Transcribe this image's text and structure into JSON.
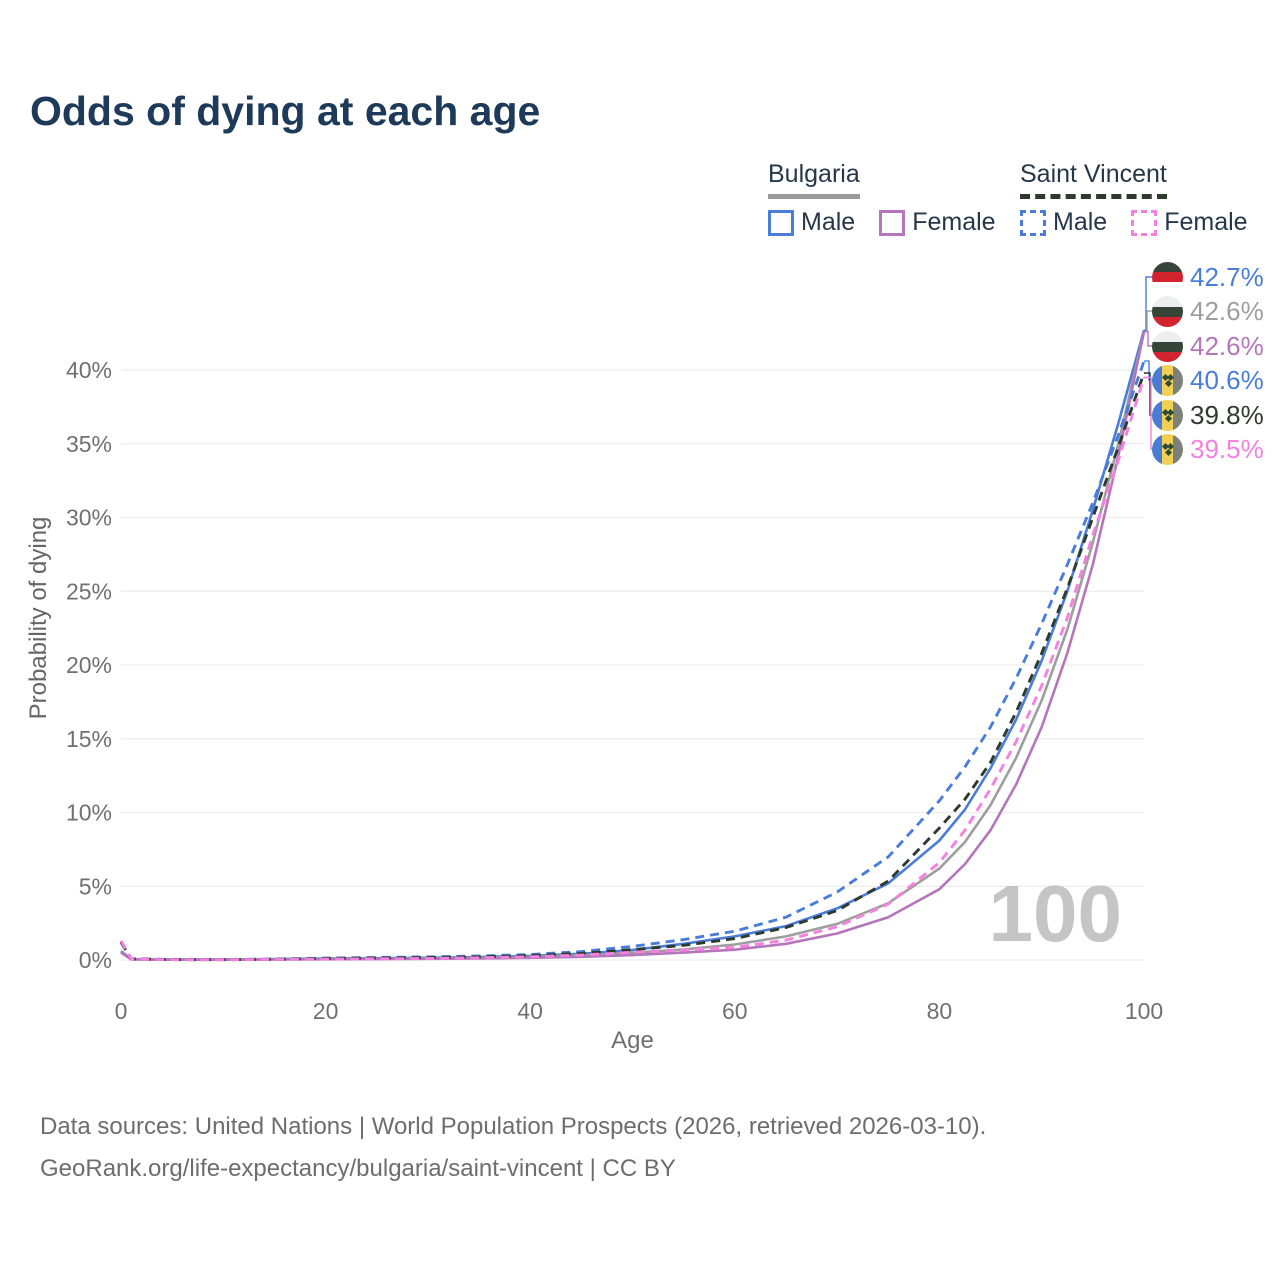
{
  "header": {
    "title": "Odds of dying at each age"
  },
  "legend": {
    "groups": [
      {
        "name": "Bulgaria",
        "line_style": "solid",
        "underline_color": "#9a9a9a",
        "items": [
          {
            "label": "Male",
            "color": "#4a7dd9"
          },
          {
            "label": "Female",
            "color": "#b475bb"
          }
        ]
      },
      {
        "name": "Saint Vincent",
        "line_style": "dashed",
        "underline_color": "#2e3a2b",
        "items": [
          {
            "label": "Male",
            "color": "#4a7dd9"
          },
          {
            "label": "Female",
            "color": "#f580e0"
          }
        ]
      }
    ]
  },
  "end_labels": [
    {
      "flag": "bulgaria",
      "value": "42.7%",
      "color": "#4a7dd9"
    },
    {
      "flag": "bulgaria",
      "value": "42.6%",
      "color": "#9e9e9e"
    },
    {
      "flag": "bulgaria",
      "value": "42.6%",
      "color": "#b475bb"
    },
    {
      "flag": "saint-vincent",
      "value": "40.6%",
      "color": "#4a7dd9"
    },
    {
      "flag": "saint-vincent",
      "value": "39.8%",
      "color": "#2e3a2b"
    },
    {
      "flag": "saint-vincent",
      "value": "39.5%",
      "color": "#f580e0"
    }
  ],
  "chart_data": {
    "type": "line",
    "title": "Odds of dying at each age",
    "xlabel": "Age",
    "ylabel": "Probability of dying",
    "xlim": [
      0,
      100
    ],
    "ylim_pct": [
      0,
      44
    ],
    "xticks": [
      0,
      20,
      40,
      60,
      80,
      100
    ],
    "yticks_pct": [
      0,
      5,
      10,
      15,
      20,
      25,
      30,
      35,
      40
    ],
    "grid": true,
    "hover_age": "100",
    "legend_position": "top-right",
    "x": [
      0,
      1,
      5,
      10,
      15,
      20,
      25,
      30,
      35,
      40,
      45,
      50,
      55,
      60,
      65,
      70,
      75,
      80,
      82.5,
      85,
      87.5,
      90,
      92.5,
      95,
      97.5,
      100
    ],
    "series": [
      {
        "name": "Bulgaria Male",
        "style": "solid",
        "color": "#4a7dd9",
        "end_label": "42.7%",
        "values_pct": [
          0.6,
          0.06,
          0.03,
          0.03,
          0.06,
          0.1,
          0.12,
          0.15,
          0.2,
          0.28,
          0.42,
          0.68,
          1.1,
          1.6,
          2.3,
          3.5,
          5.2,
          8.1,
          10.2,
          13.0,
          16.3,
          20.3,
          25.0,
          30.5,
          36.4,
          42.7
        ]
      },
      {
        "name": "Bulgaria Both sexes",
        "style": "solid",
        "color": "#9e9e9e",
        "end_label": "42.6%",
        "values_pct": [
          0.55,
          0.05,
          0.02,
          0.02,
          0.05,
          0.07,
          0.09,
          0.11,
          0.15,
          0.21,
          0.31,
          0.49,
          0.72,
          1.05,
          1.6,
          2.45,
          3.85,
          6.2,
          8.0,
          10.5,
          13.7,
          17.6,
          22.4,
          28.3,
          35.0,
          42.6
        ]
      },
      {
        "name": "Bulgaria Female",
        "style": "solid",
        "color": "#b475bb",
        "end_label": "42.6%",
        "values_pct": [
          0.5,
          0.04,
          0.02,
          0.02,
          0.04,
          0.05,
          0.06,
          0.08,
          0.11,
          0.15,
          0.22,
          0.33,
          0.5,
          0.7,
          1.1,
          1.8,
          2.9,
          4.8,
          6.5,
          8.8,
          11.9,
          15.8,
          20.8,
          26.8,
          34.2,
          42.6
        ]
      },
      {
        "name": "Saint Vincent Male",
        "style": "dashed",
        "color": "#4a7dd9",
        "end_label": "40.6%",
        "values_pct": [
          1.25,
          0.09,
          0.03,
          0.03,
          0.07,
          0.13,
          0.17,
          0.21,
          0.27,
          0.37,
          0.57,
          0.92,
          1.38,
          1.95,
          2.9,
          4.6,
          7.0,
          10.8,
          13.1,
          15.8,
          19.1,
          22.8,
          26.8,
          31.0,
          35.6,
          40.6
        ]
      },
      {
        "name": "Saint Vincent Both sexes",
        "style": "dashed",
        "color": "#2e3a2b",
        "end_label": "39.8%",
        "values_pct": [
          1.2,
          0.08,
          0.03,
          0.02,
          0.05,
          0.1,
          0.13,
          0.16,
          0.21,
          0.3,
          0.45,
          0.7,
          1.0,
          1.45,
          2.2,
          3.35,
          5.35,
          8.95,
          10.9,
          13.4,
          16.8,
          20.8,
          25.2,
          30.0,
          34.8,
          39.8
        ]
      },
      {
        "name": "Saint Vincent Female",
        "style": "dashed",
        "color": "#f580e0",
        "end_label": "39.5%",
        "values_pct": [
          1.3,
          0.07,
          0.02,
          0.02,
          0.04,
          0.06,
          0.08,
          0.1,
          0.15,
          0.22,
          0.33,
          0.52,
          0.68,
          0.85,
          1.35,
          2.25,
          3.8,
          6.6,
          8.8,
          11.6,
          14.8,
          18.6,
          23.2,
          28.8,
          33.9,
          39.5
        ]
      }
    ]
  },
  "footer": {
    "line1": "Data sources: United Nations | World Population Prospects (2026, retrieved 2026-03-10).",
    "line2": "GeoRank.org/life-expectancy/bulgaria/saint-vincent | CC BY"
  }
}
